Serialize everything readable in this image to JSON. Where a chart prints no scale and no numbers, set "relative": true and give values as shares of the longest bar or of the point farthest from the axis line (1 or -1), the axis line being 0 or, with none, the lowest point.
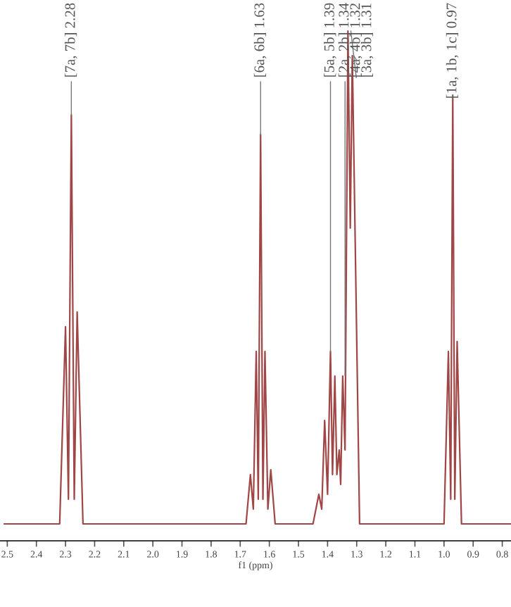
{
  "chart_data": {
    "type": "line",
    "relative": true,
    "xlabel": "f1 (ppm)",
    "xlim": [
      2.525,
      0.77
    ],
    "xticks": [
      2.5,
      2.4,
      2.3,
      2.2,
      2.1,
      {
        "value": 2,
        "label": "2.0"
      },
      1.9,
      1.8,
      1.7,
      1.6,
      1.5,
      1.4,
      1.3,
      1.2,
      1.1,
      {
        "value": 1,
        "label": "1.0"
      },
      0.9,
      0.8
    ],
    "grid": false,
    "legend": false,
    "marker": "none",
    "line_style": "solid",
    "series": [
      {
        "color": "#a04646",
        "x": [
          2.51,
          2.32,
          2.3,
          2.29,
          2.28,
          2.27,
          2.26,
          2.24,
          1.68,
          1.665,
          1.655,
          1.645,
          1.638,
          1.63,
          1.622,
          1.615,
          1.605,
          1.595,
          1.58,
          1.45,
          1.43,
          1.42,
          1.41,
          1.4,
          1.39,
          1.383,
          1.375,
          1.368,
          1.36,
          1.355,
          1.348,
          1.34,
          1.33,
          1.322,
          1.315,
          1.29,
          1.0,
          0.985,
          0.977,
          0.97,
          0.963,
          0.955,
          0.94,
          0.77
        ],
        "values": [
          0,
          0,
          0.4,
          0.05,
          0.83,
          0.05,
          0.43,
          0,
          0,
          0.1,
          0.03,
          0.35,
          0.05,
          0.79,
          0.05,
          0.35,
          0.03,
          0.11,
          0,
          0,
          0.06,
          0.03,
          0.21,
          0.06,
          0.35,
          0.1,
          0.3,
          0.1,
          0.15,
          0.08,
          0.3,
          0.15,
          1.0,
          0.6,
          0.95,
          0,
          0,
          0.35,
          0.05,
          0.87,
          0.05,
          0.37,
          0,
          0
        ]
      }
    ],
    "annotations": [
      {
        "text": "[7a, 7b] 2.28",
        "x": 2.28,
        "y": 0.83
      },
      {
        "text": "[6a, 6b] 1.63",
        "x": 1.63,
        "y": 0.79
      },
      {
        "text": "[5a, 5b] 1.39",
        "x": 1.39,
        "y": 0.35
      },
      {
        "text": "[2a, 2b] 1.34",
        "x": 1.34,
        "y": 0.3
      },
      {
        "text": "[4a, 4b] 1.32",
        "x": 1.32,
        "y": 1.0
      },
      {
        "text": "[3a, 3b] 1.31",
        "x": 1.31,
        "y": 0.95
      },
      {
        "text": "[1a, 1b, 1c] 0.97",
        "x": 0.97,
        "y": 0.87
      }
    ]
  }
}
